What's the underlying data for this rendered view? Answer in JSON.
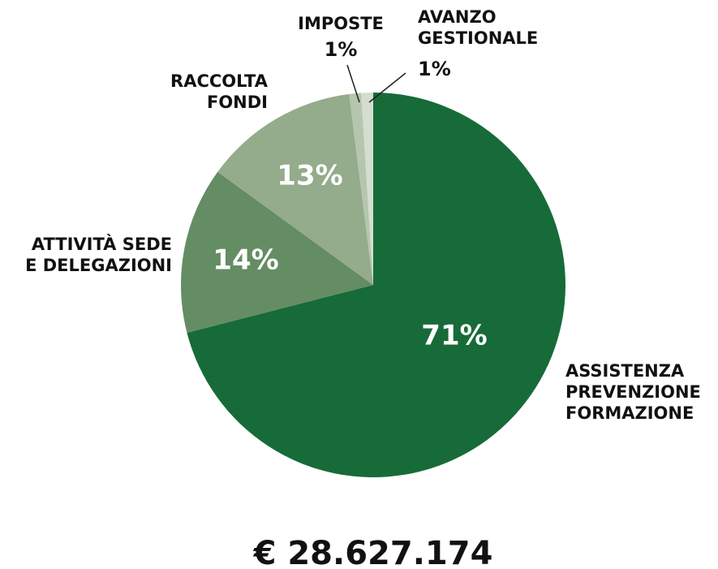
{
  "chart_data": {
    "type": "pie",
    "categories": [
      [
        "ASSISTENZA",
        "PREVENZIONE",
        "FORMAZIONE"
      ],
      [
        "ATTIVITÀ SEDE",
        "E DELEGAZIONI"
      ],
      [
        "RACCOLTA",
        "FONDI"
      ],
      [
        "IMPOSTE"
      ],
      [
        "AVANZO",
        "GESTIONALE"
      ]
    ],
    "values": [
      71,
      14,
      13,
      1,
      1
    ],
    "value_labels": [
      "71%",
      "14%",
      "13%",
      "1%",
      "1%"
    ],
    "colors": [
      "#176b38",
      "#648d64",
      "#94ab8c",
      "#b5c6ae",
      "#d4ddd0"
    ],
    "total": "€ 28.627.174"
  }
}
